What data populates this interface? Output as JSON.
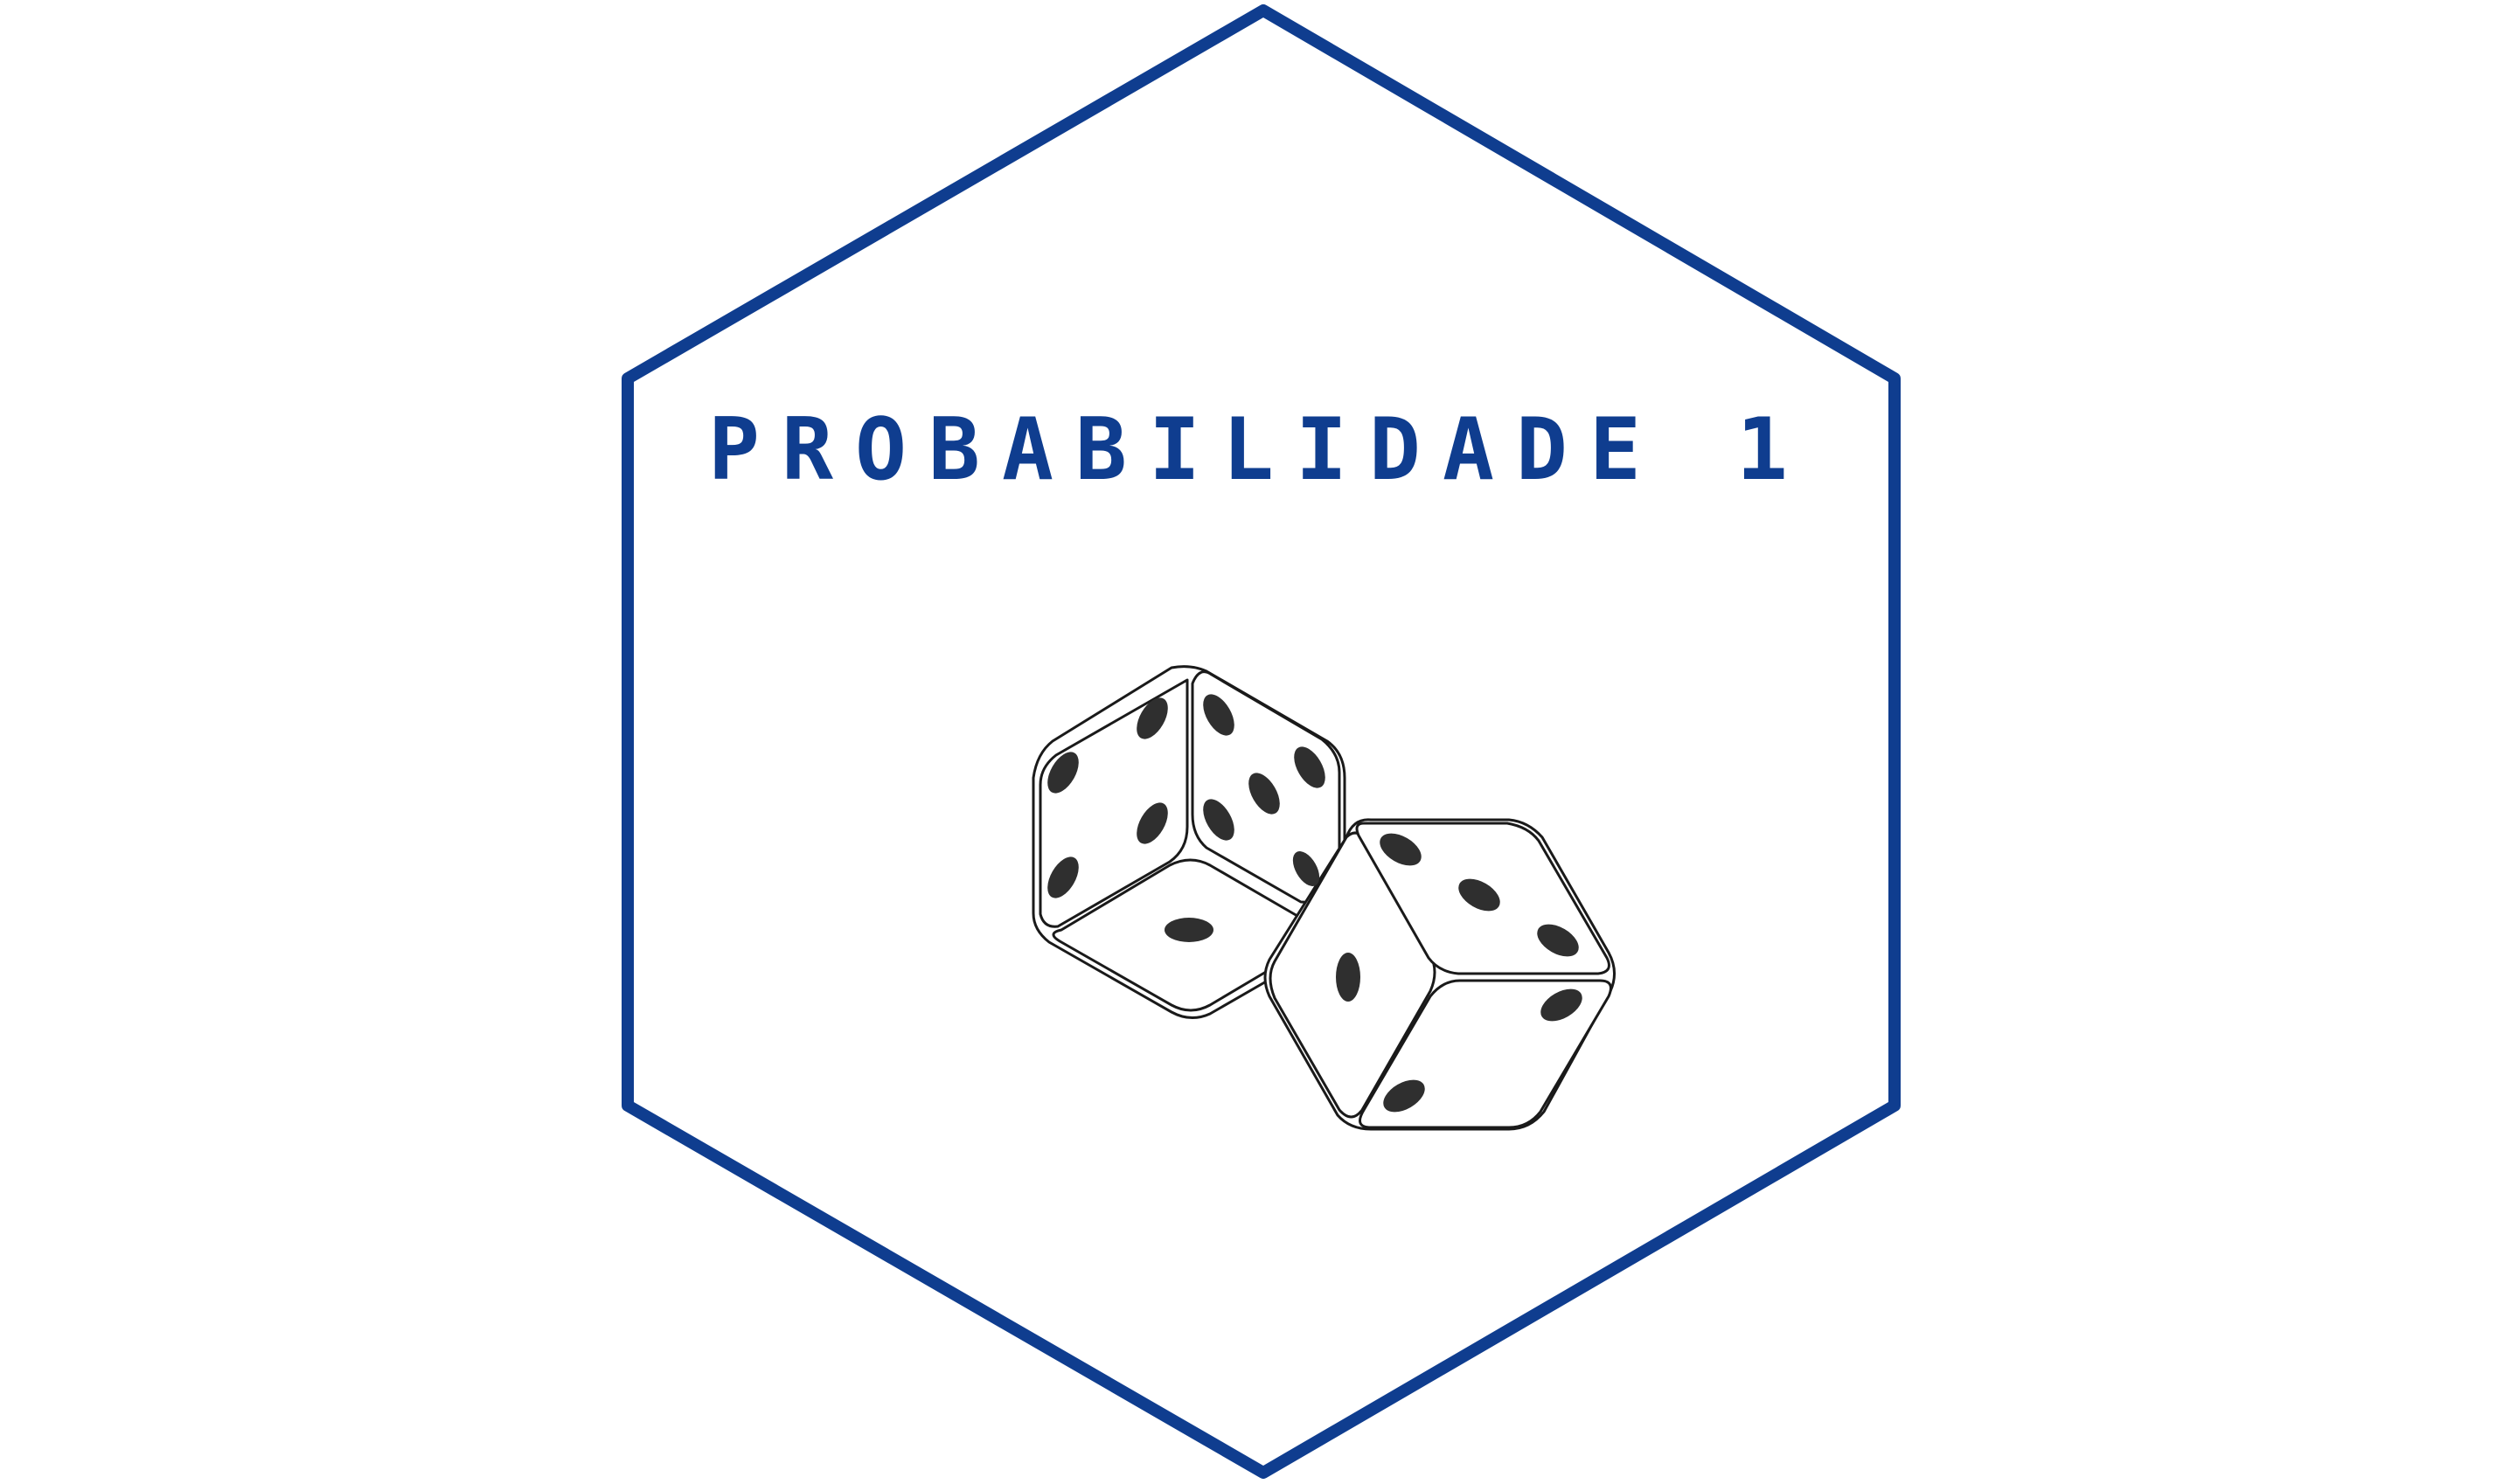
{
  "title": "PROBABILIDADE 1",
  "colors": {
    "frame": "#0f3d8f",
    "title": "#0f3d8f",
    "dice_face": "#ffffff",
    "dice_outline": "#1a1a1a",
    "dice_pip": "#2f2f2f"
  },
  "icons": [
    "hexagon-frame",
    "dice-icon"
  ]
}
